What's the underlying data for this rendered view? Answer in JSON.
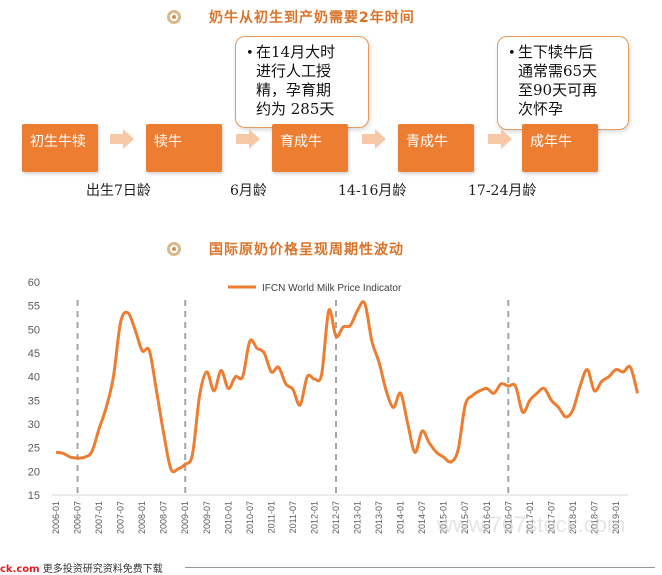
{
  "section1": {
    "title": "奶牛从初生到产奶需要2年时间"
  },
  "section2": {
    "title": "国际原奶价格呈现周期性波动"
  },
  "stages": [
    "初生牛犊",
    "犊牛",
    "育成牛",
    "青成牛",
    "成年牛"
  ],
  "ages": [
    "出生7日龄",
    "6月龄",
    "14-16月龄",
    "17-24月龄"
  ],
  "callouts": [
    {
      "bullet": "•",
      "text": "在14月大时进行人工授精，孕育期约为 285天",
      "lines": [
        "在14月大时",
        "进行人工授",
        "精，孕育期",
        "约为  285天"
      ]
    },
    {
      "bullet": "•",
      "text": "生下犊牛后通常需65天至90天可再次怀孕",
      "lines": [
        "生下犊牛后",
        "通常需65天",
        "至90天可再",
        "次怀孕"
      ]
    }
  ],
  "colors": {
    "accent": "#ED7D31",
    "title": "#D9742A",
    "dashed": "#A6A6A6",
    "axis": "#D9D9D9"
  },
  "footer": {
    "brand": "ck.com",
    "text": "更多投资研究资料免费下载"
  },
  "watermark": "www.767stock.com",
  "chart_data": {
    "type": "line",
    "title": "",
    "legend_position": "top-center",
    "xlabel": "",
    "ylabel": "",
    "ylim": [
      15,
      60
    ],
    "yticks": [
      15,
      20,
      25,
      30,
      35,
      40,
      45,
      50,
      55,
      60
    ],
    "grid": false,
    "xticks": [
      "2006-01",
      "2006-07",
      "2007-01",
      "2007-07",
      "2008-01",
      "2008-07",
      "2009-01",
      "2009-07",
      "2010-01",
      "2010-07",
      "2011-01",
      "2011-07",
      "2012-01",
      "2012-07",
      "2013-01",
      "2013-07",
      "2014-01",
      "2014-07",
      "2015-01",
      "2015-07",
      "2016-01",
      "2016-07",
      "2017-01",
      "2017-07",
      "2018-01",
      "2018-07",
      "2019-01"
    ],
    "cycle_markers": [
      "2006-07",
      "2009-01",
      "2012-07",
      "2016-07"
    ],
    "series": [
      {
        "name": "IFCN World Milk Price Indicator",
        "x": [
          "2006-01",
          "2006-03",
          "2006-05",
          "2006-07",
          "2006-09",
          "2006-11",
          "2007-01",
          "2007-03",
          "2007-05",
          "2007-07",
          "2007-09",
          "2007-11",
          "2008-01",
          "2008-03",
          "2008-05",
          "2008-07",
          "2008-09",
          "2008-11",
          "2009-01",
          "2009-03",
          "2009-05",
          "2009-07",
          "2009-09",
          "2009-11",
          "2010-01",
          "2010-03",
          "2010-05",
          "2010-07",
          "2010-09",
          "2010-11",
          "2011-01",
          "2011-03",
          "2011-05",
          "2011-07",
          "2011-09",
          "2011-11",
          "2012-01",
          "2012-03",
          "2012-05",
          "2012-07",
          "2012-09",
          "2012-11",
          "2013-01",
          "2013-03",
          "2013-05",
          "2013-07",
          "2013-09",
          "2013-11",
          "2014-01",
          "2014-03",
          "2014-05",
          "2014-07",
          "2014-09",
          "2014-11",
          "2015-01",
          "2015-03",
          "2015-05",
          "2015-07",
          "2015-09",
          "2015-11",
          "2016-01",
          "2016-03",
          "2016-05",
          "2016-07",
          "2016-09",
          "2016-11",
          "2017-01",
          "2017-03",
          "2017-05",
          "2017-07",
          "2017-09",
          "2017-11",
          "2018-01",
          "2018-03",
          "2018-05",
          "2018-07",
          "2018-09",
          "2018-11",
          "2019-01",
          "2019-03",
          "2019-05",
          "2019-07"
        ],
        "values": [
          24,
          23.8,
          23,
          22.8,
          23,
          24.2,
          29,
          33.5,
          40,
          51.5,
          53.5,
          50,
          45.5,
          45.5,
          37,
          28,
          20.5,
          20.5,
          21.5,
          23.5,
          36,
          41,
          37,
          41.3,
          37.5,
          40,
          40,
          47.5,
          46,
          45,
          41,
          42,
          38.5,
          37.3,
          34,
          40,
          39.5,
          40.5,
          54,
          48.5,
          50.5,
          50.8,
          54,
          55.5,
          47.5,
          43,
          37,
          33.5,
          36.5,
          30,
          24,
          28.5,
          26,
          24,
          23,
          22,
          24.5,
          34,
          36,
          37,
          37.5,
          36.5,
          38.5,
          38,
          38,
          32.5,
          35,
          36.5,
          37.5,
          35,
          33.5,
          31.5,
          33,
          38,
          41.5,
          37,
          39,
          40,
          41.5,
          41,
          42,
          36.5
        ]
      }
    ]
  }
}
